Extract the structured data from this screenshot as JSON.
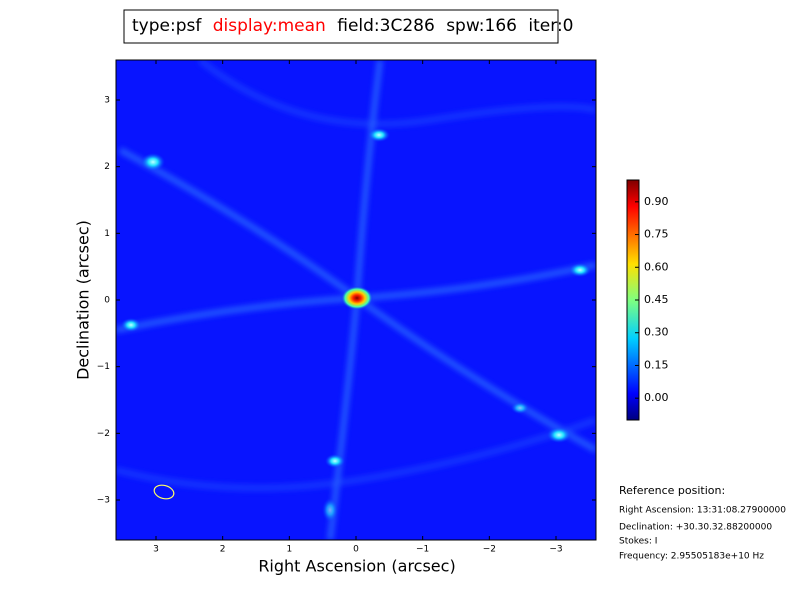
{
  "chart_data": {
    "type": "image",
    "title": {
      "type": "type:psf",
      "display": "display:mean",
      "field": "field:3C286",
      "spw": "spw:166",
      "iter": "iter:0"
    },
    "xlabel": "Right Ascension (arcsec)",
    "ylabel": "Declination (arcsec)",
    "xlim": [
      3.6,
      -3.6
    ],
    "ylim": [
      -3.6,
      3.6
    ],
    "xticks": [
      3,
      2,
      1,
      0,
      {
        "value": -1,
        "label": "−1"
      },
      {
        "value": -2,
        "label": "−2"
      },
      {
        "value": -3,
        "label": "−3"
      }
    ],
    "yticks": [
      {
        "value": -3,
        "label": "−3"
      },
      {
        "value": -2,
        "label": "−2"
      },
      {
        "value": -1,
        "label": "−1"
      },
      0,
      1,
      2,
      3
    ],
    "colorbar": {
      "lim": [
        -0.1,
        1.0
      ],
      "ticks": [
        {
          "value": 0,
          "label": "0.00"
        },
        0.15,
        {
          "value": 0.3,
          "label": "0.30"
        },
        0.45,
        {
          "value": 0.6,
          "label": "0.60"
        },
        0.75,
        {
          "value": 0.9,
          "label": "0.90"
        }
      ]
    },
    "reference": {
      "heading": "Reference position:",
      "lines": [
        "Right Ascension: 13:31:08.27900000",
        "Declination: +30.30.32.88200000",
        "Stokes: I",
        "Frequency: 2.95505183e+10 Hz"
      ]
    }
  }
}
